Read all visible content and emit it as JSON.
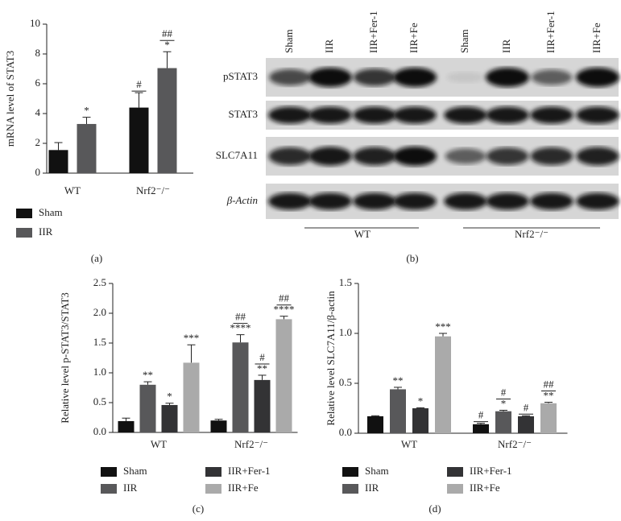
{
  "chart_data": [
    {
      "type": "bar",
      "panel_label": "(a)",
      "ylabel": "mRNA level of STAT3",
      "categories": [
        "WT",
        "Nrf2⁻/⁻"
      ],
      "series": [
        {
          "name": "Sham",
          "color": "#111111",
          "values": [
            1.55,
            4.4
          ],
          "errors": [
            0.5,
            1.0
          ],
          "annotations": [
            null,
            [
              "#"
            ]
          ]
        },
        {
          "name": "IIR",
          "color": "#58585a",
          "values": [
            3.3,
            7.05
          ],
          "errors": [
            0.45,
            1.1
          ],
          "annotations": [
            [
              "*"
            ],
            [
              "*",
              "##"
            ]
          ]
        }
      ],
      "ylim": [
        0,
        10
      ],
      "yticks": [
        0,
        2,
        4,
        6,
        8,
        10
      ]
    },
    {
      "type": "bar",
      "panel_label": "(c)",
      "ylabel": "Relative level p-STAT3/STAT3",
      "categories": [
        "WT",
        "Nrf2⁻/⁻"
      ],
      "series": [
        {
          "name": "Sham",
          "color": "#111111",
          "values": [
            0.19,
            0.2
          ],
          "errors": [
            0.05,
            0.02
          ],
          "annotations": [
            null,
            null
          ]
        },
        {
          "name": "IIR",
          "color": "#58585a",
          "values": [
            0.8,
            1.51
          ],
          "errors": [
            0.05,
            0.13
          ],
          "annotations": [
            [
              "**"
            ],
            [
              "****",
              "##"
            ]
          ]
        },
        {
          "name": "IIR+Fer-1",
          "color": "#333335",
          "values": [
            0.46,
            0.88
          ],
          "errors": [
            0.03,
            0.08
          ],
          "annotations": [
            [
              "*"
            ],
            [
              "**",
              "#"
            ]
          ]
        },
        {
          "name": "IIR+Fe",
          "color": "#aaaaaa",
          "values": [
            1.17,
            1.9
          ],
          "errors": [
            0.3,
            0.05
          ],
          "annotations": [
            [
              "***"
            ],
            [
              "****",
              "##"
            ]
          ]
        }
      ],
      "ylim": [
        0,
        2.5
      ],
      "yticks": [
        {
          "value": 0,
          "label": "0.0"
        },
        0.5,
        {
          "value": 1,
          "label": "1.0"
        },
        1.5,
        {
          "value": 2,
          "label": "2.0"
        },
        2.5
      ]
    },
    {
      "type": "bar",
      "panel_label": "(d)",
      "ylabel": "Relative level SLC7A11/β-actin",
      "categories": [
        "WT",
        "Nrf2⁻/⁻"
      ],
      "series": [
        {
          "name": "Sham",
          "color": "#111111",
          "values": [
            0.17,
            0.09
          ],
          "errors": [
            0.005,
            0.01
          ],
          "annotations": [
            null,
            [
              "#"
            ]
          ]
        },
        {
          "name": "IIR",
          "color": "#58585a",
          "values": [
            0.44,
            0.22
          ],
          "errors": [
            0.02,
            0.01
          ],
          "annotations": [
            [
              "**"
            ],
            [
              "*",
              "#"
            ]
          ]
        },
        {
          "name": "IIR+Fer-1",
          "color": "#333335",
          "values": [
            0.25,
            0.17
          ],
          "errors": [
            0.005,
            0.005
          ],
          "annotations": [
            [
              "*"
            ],
            [
              "#"
            ]
          ]
        },
        {
          "name": "IIR+Fe",
          "color": "#aaaaaa",
          "values": [
            0.97,
            0.3
          ],
          "errors": [
            0.03,
            0.01
          ],
          "annotations": [
            [
              "***"
            ],
            [
              "**",
              "##"
            ]
          ]
        }
      ],
      "ylim": [
        0,
        1.5
      ],
      "yticks": [
        {
          "value": 0,
          "label": "0.0"
        },
        0.5,
        {
          "value": 1,
          "label": "1.0"
        },
        1.5
      ]
    }
  ],
  "blot": {
    "panel_label": "(b)",
    "lanes": [
      "Sham",
      "IIR",
      "IIR+Fer-1",
      "IIR+Fe",
      "Sham",
      "IIR",
      "IIR+Fer-1",
      "IIR+Fe"
    ],
    "rows": [
      "pSTAT3",
      "STAT3",
      "SLC7A11",
      "β-Actin"
    ],
    "groups": [
      "WT",
      "Nrf2⁻/⁻"
    ]
  }
}
